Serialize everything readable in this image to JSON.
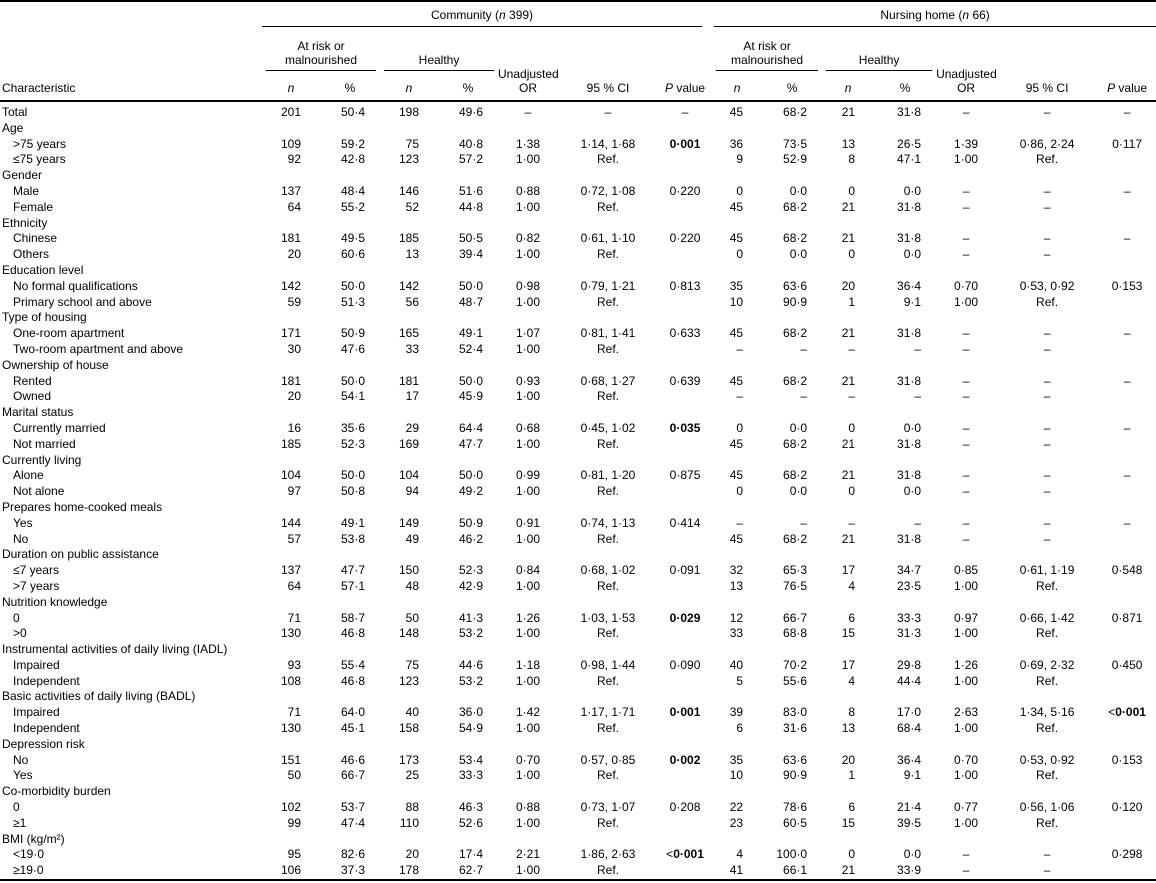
{
  "colors": {
    "text": "#000000",
    "background": "#ffffff",
    "rule": "#000000"
  },
  "table": {
    "groups": [
      {
        "label_pre": "Community (",
        "label_n": "n",
        "label_post": " 399)"
      },
      {
        "label_pre": "Nursing home (",
        "label_n": "n",
        "label_post": " 66)"
      }
    ],
    "subgroups": {
      "at_risk_line1": "At risk or",
      "at_risk_line2": "malnourished",
      "healthy": "Healthy"
    },
    "columns": {
      "characteristic": "Characteristic",
      "n": "n",
      "pct": "%",
      "or_line1": "Unadjusted",
      "or_line2": "OR",
      "ci": "95 % CI",
      "p_italic": "P",
      "p_rest": " value"
    },
    "rows": [
      {
        "label": "Total",
        "indent": false,
        "c": [
          "201",
          "50·4",
          "198",
          "49·6",
          "–",
          "–",
          "–"
        ],
        "n": [
          "45",
          "68·2",
          "21",
          "31·8",
          "–",
          "–",
          "–"
        ]
      },
      {
        "section": "Age"
      },
      {
        "label": ">75 years",
        "c": [
          "109",
          "59·2",
          "75",
          "40·8",
          "1·38",
          "1·14, 1·68",
          "0·001"
        ],
        "bc": true,
        "n": [
          "36",
          "73·5",
          "13",
          "26·5",
          "1·39",
          "0·86, 2·24",
          "0·117"
        ]
      },
      {
        "label": "≤75 years",
        "c": [
          "92",
          "42·8",
          "123",
          "57·2",
          "1·00",
          "Ref.",
          ""
        ],
        "n": [
          "9",
          "52·9",
          "8",
          "47·1",
          "1·00",
          "Ref.",
          ""
        ]
      },
      {
        "section": "Gender"
      },
      {
        "label": "Male",
        "c": [
          "137",
          "48·4",
          "146",
          "51·6",
          "0·88",
          "0·72, 1·08",
          "0·220"
        ],
        "n": [
          "0",
          "0·0",
          "0",
          "0·0",
          "–",
          "–",
          "–"
        ]
      },
      {
        "label": "Female",
        "c": [
          "64",
          "55·2",
          "52",
          "44·8",
          "1·00",
          "Ref.",
          ""
        ],
        "n": [
          "45",
          "68·2",
          "21",
          "31·8",
          "–",
          "–",
          ""
        ]
      },
      {
        "section": "Ethnicity"
      },
      {
        "label": "Chinese",
        "c": [
          "181",
          "49·5",
          "185",
          "50·5",
          "0·82",
          "0·61, 1·10",
          "0·220"
        ],
        "n": [
          "45",
          "68·2",
          "21",
          "31·8",
          "–",
          "–",
          "–"
        ]
      },
      {
        "label": "Others",
        "c": [
          "20",
          "60·6",
          "13",
          "39·4",
          "1·00",
          "Ref.",
          ""
        ],
        "n": [
          "0",
          "0·0",
          "0",
          "0·0",
          "–",
          "–",
          ""
        ]
      },
      {
        "section": "Education level"
      },
      {
        "label": "No formal qualifications",
        "c": [
          "142",
          "50·0",
          "142",
          "50·0",
          "0·98",
          "0·79, 1·21",
          "0·813"
        ],
        "n": [
          "35",
          "63·6",
          "20",
          "36·4",
          "0·70",
          "0·53, 0·92",
          "0·153"
        ]
      },
      {
        "label": "Primary school and above",
        "c": [
          "59",
          "51·3",
          "56",
          "48·7",
          "1·00",
          "Ref.",
          ""
        ],
        "n": [
          "10",
          "90·9",
          "1",
          "9·1",
          "1·00",
          "Ref.",
          ""
        ]
      },
      {
        "section": "Type of housing"
      },
      {
        "label": "One-room apartment",
        "c": [
          "171",
          "50·9",
          "165",
          "49·1",
          "1·07",
          "0·81, 1·41",
          "0·633"
        ],
        "n": [
          "45",
          "68·2",
          "21",
          "31·8",
          "–",
          "–",
          "–"
        ]
      },
      {
        "label": "Two-room apartment and above",
        "c": [
          "30",
          "47·6",
          "33",
          "52·4",
          "1·00",
          "Ref.",
          ""
        ],
        "n": [
          "–",
          "–",
          "–",
          "–",
          "–",
          "–",
          ""
        ]
      },
      {
        "section": "Ownership of house"
      },
      {
        "label": "Rented",
        "c": [
          "181",
          "50·0",
          "181",
          "50·0",
          "0·93",
          "0·68, 1·27",
          "0·639"
        ],
        "n": [
          "45",
          "68·2",
          "21",
          "31·8",
          "–",
          "–",
          "–"
        ]
      },
      {
        "label": "Owned",
        "c": [
          "20",
          "54·1",
          "17",
          "45·9",
          "1·00",
          "Ref.",
          ""
        ],
        "n": [
          "–",
          "–",
          "–",
          "–",
          "–",
          "–",
          ""
        ]
      },
      {
        "section": "Marital status"
      },
      {
        "label": "Currently married",
        "c": [
          "16",
          "35·6",
          "29",
          "64·4",
          "0·68",
          "0·45, 1·02",
          "0·035"
        ],
        "bc": true,
        "n": [
          "0",
          "0·0",
          "0",
          "0·0",
          "–",
          "–",
          "–"
        ]
      },
      {
        "label": "Not married",
        "c": [
          "185",
          "52·3",
          "169",
          "47·7",
          "1·00",
          "Ref.",
          ""
        ],
        "n": [
          "45",
          "68·2",
          "21",
          "31·8",
          "–",
          "–",
          ""
        ]
      },
      {
        "section": "Currently living"
      },
      {
        "label": "Alone",
        "c": [
          "104",
          "50·0",
          "104",
          "50·0",
          "0·99",
          "0·81, 1·20",
          "0·875"
        ],
        "n": [
          "45",
          "68·2",
          "21",
          "31·8",
          "–",
          "–",
          "–"
        ]
      },
      {
        "label": "Not alone",
        "c": [
          "97",
          "50·8",
          "94",
          "49·2",
          "1·00",
          "Ref.",
          ""
        ],
        "n": [
          "0",
          "0·0",
          "0",
          "0·0",
          "–",
          "–",
          ""
        ]
      },
      {
        "section": "Prepares home-cooked meals"
      },
      {
        "label": "Yes",
        "c": [
          "144",
          "49·1",
          "149",
          "50·9",
          "0·91",
          "0·74, 1·13",
          "0·414"
        ],
        "n": [
          "–",
          "–",
          "–",
          "–",
          "–",
          "–",
          "–"
        ]
      },
      {
        "label": "No",
        "c": [
          "57",
          "53·8",
          "49",
          "46·2",
          "1·00",
          "Ref.",
          ""
        ],
        "n": [
          "45",
          "68·2",
          "21",
          "31·8",
          "–",
          "–",
          ""
        ]
      },
      {
        "section": "Duration on public assistance"
      },
      {
        "label": "≤7 years",
        "c": [
          "137",
          "47·7",
          "150",
          "52·3",
          "0·84",
          "0·68, 1·02",
          "0·091"
        ],
        "n": [
          "32",
          "65·3",
          "17",
          "34·7",
          "0·85",
          "0·61, 1·19",
          "0·548"
        ]
      },
      {
        "label": ">7 years",
        "c": [
          "64",
          "57·1",
          "48",
          "42·9",
          "1·00",
          "Ref.",
          ""
        ],
        "n": [
          "13",
          "76·5",
          "4",
          "23·5",
          "1·00",
          "Ref.",
          ""
        ]
      },
      {
        "section": "Nutrition knowledge"
      },
      {
        "label": "0",
        "c": [
          "71",
          "58·7",
          "50",
          "41·3",
          "1·26",
          "1·03, 1·53",
          "0·029"
        ],
        "bc": true,
        "n": [
          "12",
          "66·7",
          "6",
          "33·3",
          "0·97",
          "0·66, 1·42",
          "0·871"
        ]
      },
      {
        "label": ">0",
        "c": [
          "130",
          "46·8",
          "148",
          "53·2",
          "1·00",
          "Ref.",
          ""
        ],
        "n": [
          "33",
          "68·8",
          "15",
          "31·3",
          "1·00",
          "Ref.",
          ""
        ]
      },
      {
        "section": "Instrumental activities of daily living (IADL)"
      },
      {
        "label": "Impaired",
        "c": [
          "93",
          "55·4",
          "75",
          "44·6",
          "1·18",
          "0·98, 1·44",
          "0·090"
        ],
        "n": [
          "40",
          "70·2",
          "17",
          "29·8",
          "1·26",
          "0·69, 2·32",
          "0·450"
        ]
      },
      {
        "label": "Independent",
        "c": [
          "108",
          "46·8",
          "123",
          "53·2",
          "1·00",
          "Ref.",
          ""
        ],
        "n": [
          "5",
          "55·6",
          "4",
          "44·4",
          "1·00",
          "Ref.",
          ""
        ]
      },
      {
        "section": "Basic activities of daily living (BADL)"
      },
      {
        "label": "Impaired",
        "c": [
          "71",
          "64·0",
          "40",
          "36·0",
          "1·42",
          "1·17, 1·71",
          "0·001"
        ],
        "bc": true,
        "n": [
          "39",
          "83·0",
          "8",
          "17·0",
          "2·63",
          "1·34, 5·16",
          "<0·001"
        ],
        "bn": true
      },
      {
        "label": "Independent",
        "c": [
          "130",
          "45·1",
          "158",
          "54·9",
          "1·00",
          "Ref.",
          ""
        ],
        "n": [
          "6",
          "31·6",
          "13",
          "68·4",
          "1·00",
          "Ref.",
          ""
        ]
      },
      {
        "section": "Depression risk"
      },
      {
        "label": "No",
        "c": [
          "151",
          "46·6",
          "173",
          "53·4",
          "0·70",
          "0·57, 0·85",
          "0·002"
        ],
        "bc": true,
        "n": [
          "35",
          "63·6",
          "20",
          "36·4",
          "0·70",
          "0·53, 0·92",
          "0·153"
        ]
      },
      {
        "label": "Yes",
        "c": [
          "50",
          "66·7",
          "25",
          "33·3",
          "1·00",
          "Ref.",
          ""
        ],
        "n": [
          "10",
          "90·9",
          "1",
          "9·1",
          "1·00",
          "Ref.",
          ""
        ]
      },
      {
        "section": "Co-morbidity burden"
      },
      {
        "label": "0",
        "c": [
          "102",
          "53·7",
          "88",
          "46·3",
          "0·88",
          "0·73, 1·07",
          "0·208"
        ],
        "n": [
          "22",
          "78·6",
          "6",
          "21·4",
          "0·77",
          "0·56, 1·06",
          "0·120"
        ]
      },
      {
        "label": "≥1",
        "c": [
          "99",
          "47·4",
          "110",
          "52·6",
          "1·00",
          "Ref.",
          ""
        ],
        "n": [
          "23",
          "60·5",
          "15",
          "39·5",
          "1·00",
          "Ref.",
          ""
        ]
      },
      {
        "section": "BMI (kg/m²)"
      },
      {
        "label": "<19·0",
        "c": [
          "95",
          "82·6",
          "20",
          "17·4",
          "2·21",
          "1·86, 2·63",
          "<0·001"
        ],
        "bc": true,
        "n": [
          "4",
          "100·0",
          "0",
          "0·0",
          "–",
          "–",
          "0·298"
        ]
      },
      {
        "label": "≥19·0",
        "c": [
          "106",
          "37·3",
          "178",
          "62·7",
          "1·00",
          "Ref.",
          ""
        ],
        "n": [
          "41",
          "66·1",
          "21",
          "33·9",
          "–",
          "–",
          ""
        ]
      }
    ]
  }
}
